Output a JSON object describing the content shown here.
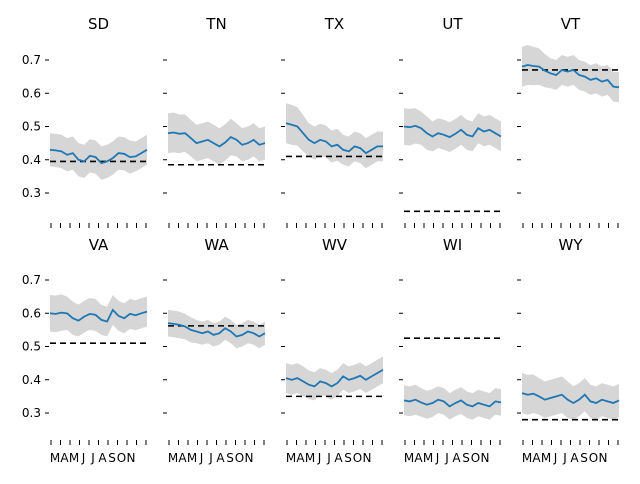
{
  "chart_data": {
    "type": "line",
    "layout": "small-multiples grid, 2 rows x 5 columns, shared y axis",
    "ylim": [
      0.22,
      0.76
    ],
    "y_ticks": [
      0.3,
      0.4,
      0.5,
      0.6,
      0.7
    ],
    "y_tick_labels": [
      "0.3",
      "0.4",
      "0.5",
      "0.6",
      "0.7"
    ],
    "x_tick_labels": [
      "M",
      "A",
      "M",
      "J",
      "J",
      "A",
      "S",
      "O",
      "N"
    ],
    "x_tick_count": 11,
    "grid": false,
    "legend": "none",
    "colors": {
      "line": "#1f77b4",
      "band": "#d6d6d6",
      "reference": "#000000"
    },
    "panels": [
      {
        "title": "SD",
        "reference": 0.395,
        "mean": [
          0.43,
          0.428,
          0.425,
          0.415,
          0.42,
          0.4,
          0.395,
          0.412,
          0.408,
          0.39,
          0.395,
          0.405,
          0.42,
          0.418,
          0.408,
          0.41,
          0.42,
          0.43
        ],
        "band": [
          0.05,
          0.05,
          0.05,
          0.05,
          0.05,
          0.05,
          0.05,
          0.05,
          0.05,
          0.05,
          0.05,
          0.05,
          0.05,
          0.05,
          0.05,
          0.045,
          0.045,
          0.045
        ]
      },
      {
        "title": "TN",
        "reference": 0.385,
        "mean": [
          0.48,
          0.482,
          0.478,
          0.48,
          0.465,
          0.45,
          0.455,
          0.46,
          0.45,
          0.44,
          0.452,
          0.468,
          0.46,
          0.445,
          0.45,
          0.46,
          0.445,
          0.45
        ],
        "band": [
          0.06,
          0.06,
          0.058,
          0.056,
          0.055,
          0.055,
          0.055,
          0.055,
          0.055,
          0.055,
          0.055,
          0.055,
          0.05,
          0.05,
          0.05,
          0.05,
          0.05,
          0.05
        ]
      },
      {
        "title": "TX",
        "reference": 0.41,
        "mean": [
          0.51,
          0.505,
          0.5,
          0.48,
          0.46,
          0.45,
          0.46,
          0.455,
          0.44,
          0.445,
          0.43,
          0.425,
          0.44,
          0.435,
          0.42,
          0.43,
          0.44,
          0.44
        ],
        "band": [
          0.06,
          0.06,
          0.058,
          0.055,
          0.05,
          0.05,
          0.048,
          0.048,
          0.048,
          0.048,
          0.045,
          0.045,
          0.045,
          0.045,
          0.045,
          0.045,
          0.045,
          0.045
        ]
      },
      {
        "title": "UT",
        "reference": 0.245,
        "mean": [
          0.5,
          0.498,
          0.502,
          0.495,
          0.48,
          0.47,
          0.48,
          0.475,
          0.468,
          0.478,
          0.49,
          0.475,
          0.47,
          0.495,
          0.485,
          0.49,
          0.48,
          0.47
        ],
        "band": [
          0.055,
          0.055,
          0.053,
          0.05,
          0.05,
          0.045,
          0.045,
          0.045,
          0.045,
          0.045,
          0.045,
          0.045,
          0.045,
          0.045,
          0.045,
          0.045,
          0.045,
          0.045
        ]
      },
      {
        "title": "VT",
        "reference": 0.67,
        "mean": [
          0.68,
          0.685,
          0.682,
          0.68,
          0.668,
          0.66,
          0.655,
          0.67,
          0.665,
          0.67,
          0.655,
          0.65,
          0.64,
          0.645,
          0.635,
          0.64,
          0.62,
          0.618
        ],
        "band": [
          0.06,
          0.06,
          0.058,
          0.055,
          0.05,
          0.045,
          0.045,
          0.045,
          0.045,
          0.045,
          0.045,
          0.045,
          0.045,
          0.045,
          0.045,
          0.045,
          0.045,
          0.045
        ]
      },
      {
        "title": "VA",
        "reference": 0.51,
        "mean": [
          0.6,
          0.598,
          0.602,
          0.6,
          0.585,
          0.578,
          0.59,
          0.598,
          0.595,
          0.58,
          0.575,
          0.61,
          0.592,
          0.585,
          0.598,
          0.594,
          0.6,
          0.605
        ],
        "band": [
          0.055,
          0.055,
          0.055,
          0.05,
          0.05,
          0.048,
          0.048,
          0.048,
          0.048,
          0.045,
          0.045,
          0.045,
          0.045,
          0.045,
          0.045,
          0.045,
          0.045,
          0.045
        ]
      },
      {
        "title": "WA",
        "reference": 0.562,
        "mean": [
          0.57,
          0.568,
          0.565,
          0.56,
          0.55,
          0.545,
          0.54,
          0.545,
          0.535,
          0.54,
          0.555,
          0.545,
          0.53,
          0.535,
          0.545,
          0.54,
          0.53,
          0.54
        ],
        "band": [
          0.04,
          0.04,
          0.04,
          0.038,
          0.038,
          0.035,
          0.035,
          0.035,
          0.035,
          0.035,
          0.035,
          0.035,
          0.035,
          0.035,
          0.035,
          0.035,
          0.035,
          0.035
        ]
      },
      {
        "title": "WV",
        "reference": 0.35,
        "mean": [
          0.405,
          0.4,
          0.405,
          0.395,
          0.385,
          0.38,
          0.395,
          0.39,
          0.38,
          0.39,
          0.41,
          0.4,
          0.405,
          0.412,
          0.4,
          0.41,
          0.42,
          0.43
        ],
        "band": [
          0.045,
          0.045,
          0.045,
          0.045,
          0.043,
          0.042,
          0.04,
          0.04,
          0.04,
          0.04,
          0.04,
          0.04,
          0.04,
          0.04,
          0.04,
          0.04,
          0.04,
          0.04
        ]
      },
      {
        "title": "WI",
        "reference": 0.525,
        "mean": [
          0.338,
          0.335,
          0.34,
          0.332,
          0.325,
          0.33,
          0.34,
          0.335,
          0.32,
          0.33,
          0.338,
          0.325,
          0.32,
          0.33,
          0.325,
          0.32,
          0.335,
          0.332
        ],
        "band": [
          0.045,
          0.045,
          0.045,
          0.043,
          0.042,
          0.042,
          0.04,
          0.04,
          0.04,
          0.04,
          0.04,
          0.04,
          0.04,
          0.04,
          0.04,
          0.04,
          0.04,
          0.04
        ]
      },
      {
        "title": "WY",
        "reference": 0.28,
        "mean": [
          0.36,
          0.355,
          0.358,
          0.35,
          0.34,
          0.345,
          0.35,
          0.355,
          0.34,
          0.33,
          0.34,
          0.355,
          0.335,
          0.33,
          0.34,
          0.335,
          0.33,
          0.338
        ],
        "band": [
          0.06,
          0.06,
          0.058,
          0.055,
          0.055,
          0.055,
          0.055,
          0.055,
          0.055,
          0.05,
          0.05,
          0.05,
          0.05,
          0.05,
          0.05,
          0.05,
          0.05,
          0.05
        ]
      }
    ]
  }
}
